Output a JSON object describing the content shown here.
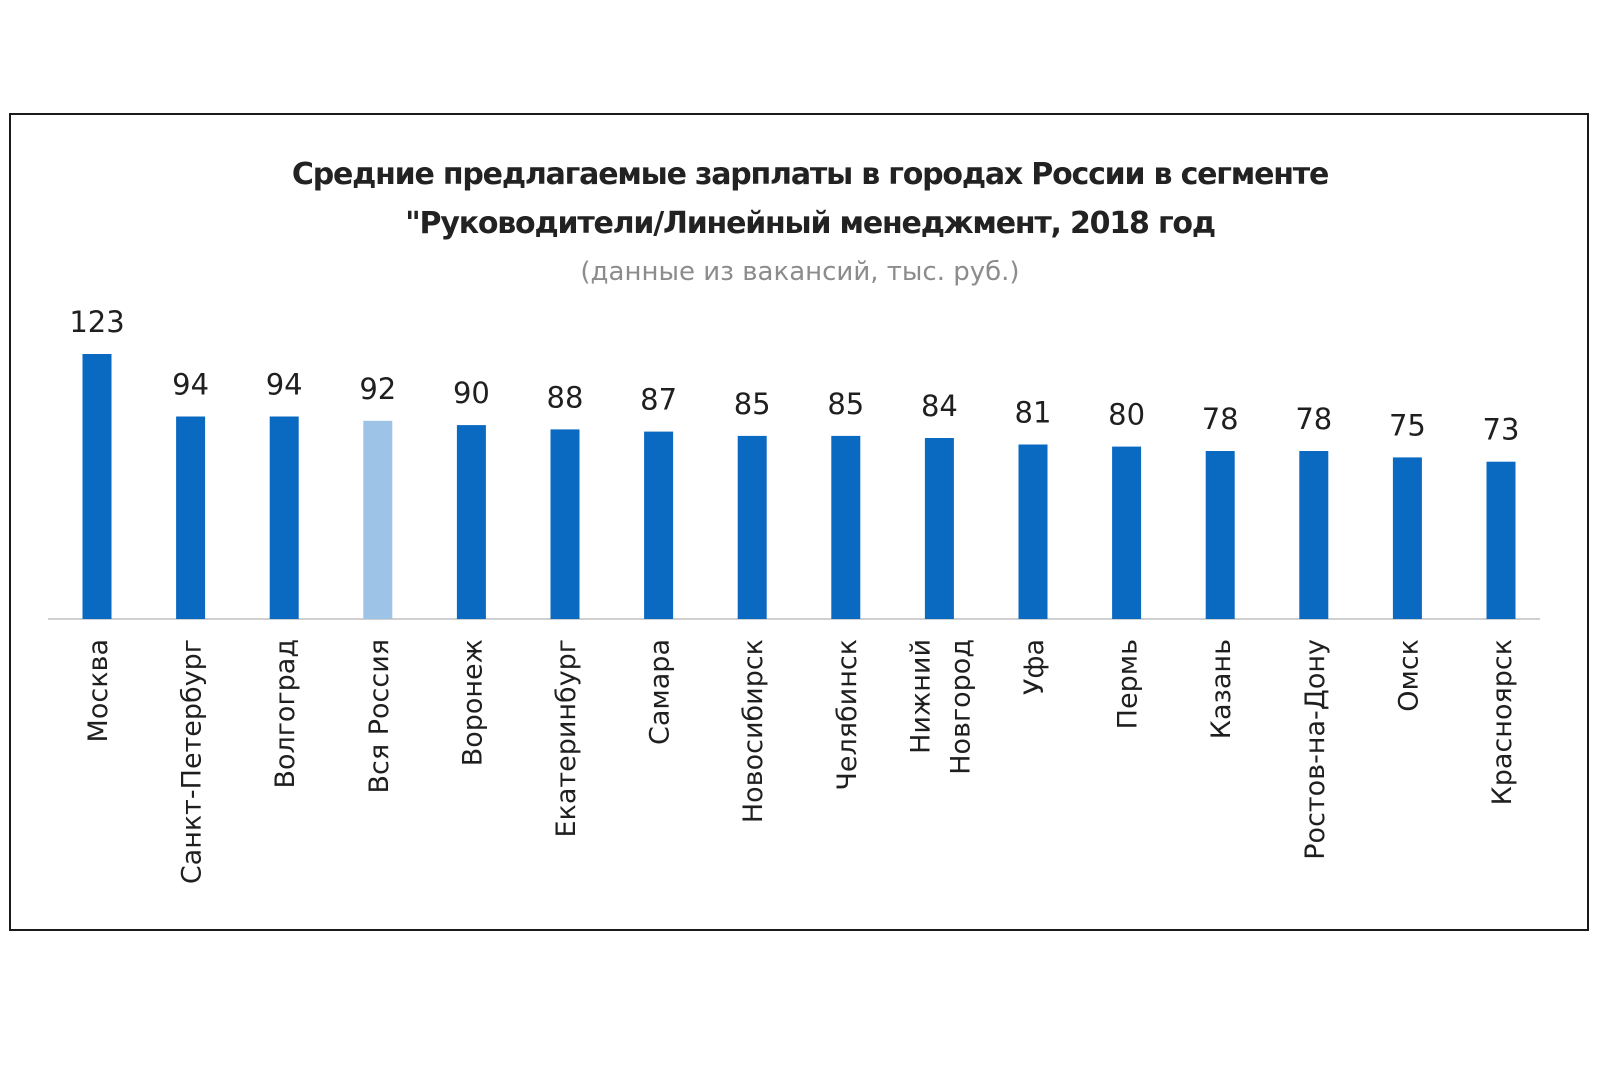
{
  "chart_data": {
    "type": "bar",
    "title": "Средние предлагаемые зарплаты в городах России в сегменте",
    "title_line2": "\"Руководители/Линейный менеджмент, 2018 год",
    "subtitle": "(данные из вакансий, тыс. руб.)",
    "categories": [
      "Москва",
      "Санкт-Петербург",
      "Волгоград",
      "Вся Россия",
      "Воронеж",
      "Екатеринбург",
      "Самара",
      "Новосибирск",
      "Челябинск",
      "Нижний Новгород",
      "Уфа",
      "Пермь",
      "Казань",
      "Ростов-на-Дону",
      "Омск",
      "Красноярск"
    ],
    "category_lines": [
      [
        "Москва"
      ],
      [
        "Санкт-Петербург"
      ],
      [
        "Волгоград"
      ],
      [
        "Вся Россия"
      ],
      [
        "Воронеж"
      ],
      [
        "Екатеринбург"
      ],
      [
        "Самара"
      ],
      [
        "Новосибирск"
      ],
      [
        "Челябинск"
      ],
      [
        "Нижний",
        "Новгород"
      ],
      [
        "Уфа"
      ],
      [
        "Пермь"
      ],
      [
        "Казань"
      ],
      [
        "Ростов-на-Дону"
      ],
      [
        "Омск"
      ],
      [
        "Красноярск"
      ]
    ],
    "values": [
      123,
      94,
      94,
      92,
      90,
      88,
      87,
      85,
      85,
      84,
      81,
      80,
      78,
      78,
      75,
      73
    ],
    "highlight_index": 3,
    "colors": {
      "bar": "#0a6ac2",
      "highlight": "#9dc3e6",
      "axis": "#d0d0d0"
    },
    "ylim": [
      0,
      123
    ],
    "grid": false,
    "legend": "none",
    "xlabel": "",
    "ylabel": ""
  }
}
